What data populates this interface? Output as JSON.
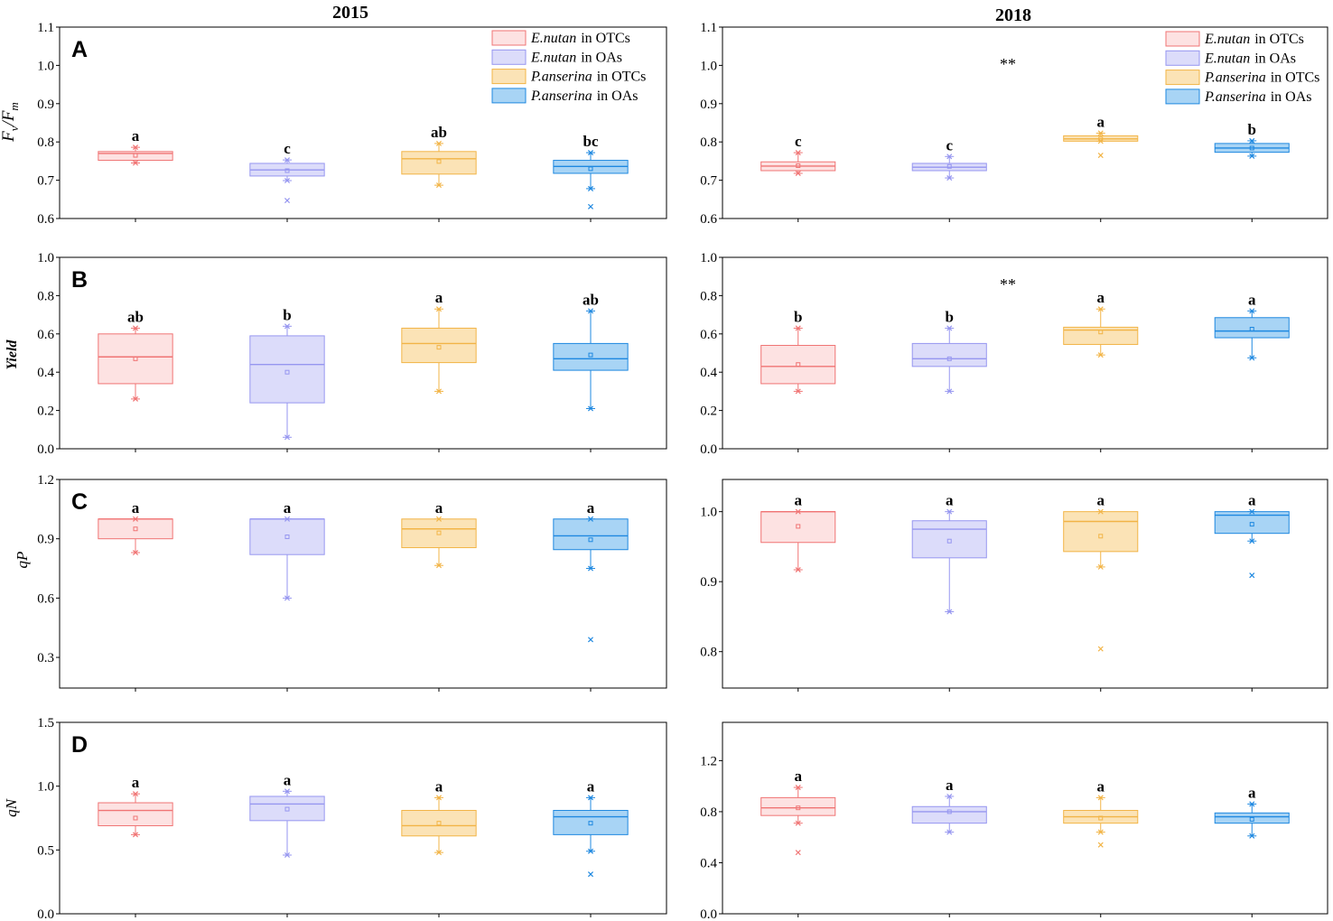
{
  "figure": {
    "columns": [
      {
        "title": "2015"
      },
      {
        "title": "2018"
      }
    ]
  },
  "legend": [
    {
      "species": "E.nutan",
      "site": "in OTCs",
      "fill": "#fde2e2",
      "stroke": "#f07474"
    },
    {
      "species": "E.nutan",
      "site": "in OAs",
      "fill": "#dcdcfa",
      "stroke": "#9696f0"
    },
    {
      "species": "P.anserina",
      "site": "in OTCs",
      "fill": "#fbe3b6",
      "stroke": "#f2b446"
    },
    {
      "species": "P.anserina",
      "site": "in OAs",
      "fill": "#a8d4f5",
      "stroke": "#1e88e0"
    }
  ],
  "chart_data": [
    {
      "type": "box",
      "panel_label": "A",
      "ylabel": [
        {
          "text": "F"
        },
        {
          "text": "v",
          "sub": true
        },
        {
          "text": "/"
        },
        {
          "text": "F"
        },
        {
          "text": "m",
          "sub": true
        }
      ],
      "ylim": [
        0.6,
        1.1
      ],
      "yticks": [
        "0.6",
        "0.7",
        "0.8",
        "0.9",
        "1.0",
        "1.1"
      ],
      "series": [
        {
          "min": 0.745,
          "q1": 0.752,
          "median": 0.77,
          "q3": 0.775,
          "max": 0.786,
          "mean": 0.765,
          "outliers": [],
          "letter": "a"
        },
        {
          "min": 0.699,
          "q1": 0.711,
          "median": 0.727,
          "q3": 0.744,
          "max": 0.753,
          "mean": 0.725,
          "outliers": [
            0.647
          ],
          "letter": "c"
        },
        {
          "min": 0.687,
          "q1": 0.716,
          "median": 0.756,
          "q3": 0.775,
          "max": 0.796,
          "mean": 0.749,
          "outliers": [],
          "letter": "ab"
        },
        {
          "min": 0.678,
          "q1": 0.718,
          "median": 0.736,
          "q3": 0.752,
          "max": 0.772,
          "mean": 0.73,
          "outliers": [
            0.631
          ],
          "letter": "bc"
        }
      ]
    },
    {
      "type": "box",
      "annotation": "**",
      "ylim": [
        0.6,
        1.1
      ],
      "yticks": [
        "0.6",
        "0.7",
        "0.8",
        "0.9",
        "1.0",
        "1.1"
      ],
      "series": [
        {
          "min": 0.718,
          "q1": 0.725,
          "median": 0.737,
          "q3": 0.748,
          "max": 0.772,
          "mean": 0.738,
          "outliers": [],
          "letter": "c"
        },
        {
          "min": 0.706,
          "q1": 0.725,
          "median": 0.734,
          "q3": 0.744,
          "max": 0.762,
          "mean": 0.736,
          "outliers": [],
          "letter": "c"
        },
        {
          "min": 0.802,
          "q1": 0.802,
          "median": 0.808,
          "q3": 0.816,
          "max": 0.823,
          "mean": 0.808,
          "outliers": [
            0.765
          ],
          "letter": "a"
        },
        {
          "min": 0.763,
          "q1": 0.773,
          "median": 0.784,
          "q3": 0.796,
          "max": 0.803,
          "mean": 0.784,
          "outliers": [],
          "letter": "b"
        }
      ]
    },
    {
      "type": "box",
      "panel_label": "B",
      "ylabel": [
        {
          "text": "Yield"
        }
      ],
      "ylim": [
        0.0,
        1.0
      ],
      "yticks": [
        "0.0",
        "0.2",
        "0.4",
        "0.6",
        "0.8",
        "1.0"
      ],
      "series": [
        {
          "min": 0.26,
          "q1": 0.34,
          "median": 0.48,
          "q3": 0.6,
          "max": 0.63,
          "mean": 0.47,
          "outliers": [],
          "letter": "ab"
        },
        {
          "min": 0.06,
          "q1": 0.24,
          "median": 0.44,
          "q3": 0.59,
          "max": 0.64,
          "mean": 0.4,
          "outliers": [],
          "letter": "b"
        },
        {
          "min": 0.3,
          "q1": 0.45,
          "median": 0.55,
          "q3": 0.63,
          "max": 0.73,
          "mean": 0.53,
          "outliers": [],
          "letter": "a"
        },
        {
          "min": 0.21,
          "q1": 0.41,
          "median": 0.47,
          "q3": 0.55,
          "max": 0.72,
          "mean": 0.49,
          "outliers": [],
          "letter": "ab"
        }
      ]
    },
    {
      "type": "box",
      "annotation": "**",
      "ylim": [
        0.0,
        1.0
      ],
      "yticks": [
        "0.0",
        "0.2",
        "0.4",
        "0.6",
        "0.8",
        "1.0"
      ],
      "series": [
        {
          "min": 0.3,
          "q1": 0.34,
          "median": 0.43,
          "q3": 0.54,
          "max": 0.63,
          "mean": 0.44,
          "outliers": [],
          "letter": "b"
        },
        {
          "min": 0.3,
          "q1": 0.43,
          "median": 0.47,
          "q3": 0.55,
          "max": 0.63,
          "mean": 0.47,
          "outliers": [],
          "letter": "b"
        },
        {
          "min": 0.49,
          "q1": 0.545,
          "median": 0.62,
          "q3": 0.635,
          "max": 0.73,
          "mean": 0.61,
          "outliers": [],
          "letter": "a"
        },
        {
          "min": 0.475,
          "q1": 0.58,
          "median": 0.615,
          "q3": 0.685,
          "max": 0.72,
          "mean": 0.625,
          "outliers": [],
          "letter": "a"
        }
      ]
    },
    {
      "type": "box",
      "panel_label": "C",
      "ylabel": [
        {
          "text": "qP"
        }
      ],
      "ylim": [
        0.145,
        1.2
      ],
      "yticks": [
        "0.3",
        "0.6",
        "0.9",
        "1.2"
      ],
      "series": [
        {
          "min": 0.83,
          "q1": 0.9,
          "median": 1.0,
          "q3": 1.0,
          "max": 1.0,
          "mean": 0.95,
          "outliers": [],
          "letter": "a"
        },
        {
          "min": 0.6,
          "q1": 0.82,
          "median": 1.0,
          "q3": 1.0,
          "max": 1.0,
          "mean": 0.91,
          "outliers": [],
          "letter": "a"
        },
        {
          "min": 0.765,
          "q1": 0.855,
          "median": 0.95,
          "q3": 1.0,
          "max": 1.0,
          "mean": 0.93,
          "outliers": [],
          "letter": "a"
        },
        {
          "min": 0.75,
          "q1": 0.845,
          "median": 0.915,
          "q3": 1.0,
          "max": 1.0,
          "mean": 0.895,
          "outliers": [
            0.39
          ],
          "letter": "a"
        }
      ]
    },
    {
      "type": "box",
      "ylim": [
        0.748,
        1.046
      ],
      "yticks": [
        "0.8",
        "0.9",
        "1.0"
      ],
      "series": [
        {
          "min": 0.917,
          "q1": 0.956,
          "median": 1.0,
          "q3": 1.0,
          "max": 1.0,
          "mean": 0.979,
          "outliers": [],
          "letter": "a"
        },
        {
          "min": 0.857,
          "q1": 0.934,
          "median": 0.975,
          "q3": 0.987,
          "max": 1.0,
          "mean": 0.958,
          "outliers": [],
          "letter": "a"
        },
        {
          "min": 0.921,
          "q1": 0.943,
          "median": 0.986,
          "q3": 1.0,
          "max": 1.0,
          "mean": 0.965,
          "outliers": [
            0.804
          ],
          "letter": "a"
        },
        {
          "min": 0.958,
          "q1": 0.969,
          "median": 0.995,
          "q3": 1.0,
          "max": 1.0,
          "mean": 0.982,
          "outliers": [
            0.909
          ],
          "letter": "a"
        }
      ]
    },
    {
      "type": "box",
      "panel_label": "D",
      "ylabel": [
        {
          "text": "qN"
        }
      ],
      "ylim": [
        0.0,
        1.5
      ],
      "yticks": [
        "0.0",
        "0.5",
        "1.0",
        "1.5"
      ],
      "series": [
        {
          "min": 0.62,
          "q1": 0.69,
          "median": 0.81,
          "q3": 0.87,
          "max": 0.94,
          "mean": 0.75,
          "outliers": [],
          "letter": "a"
        },
        {
          "min": 0.46,
          "q1": 0.73,
          "median": 0.86,
          "q3": 0.92,
          "max": 0.96,
          "mean": 0.82,
          "outliers": [],
          "letter": "a"
        },
        {
          "min": 0.48,
          "q1": 0.61,
          "median": 0.69,
          "q3": 0.81,
          "max": 0.91,
          "mean": 0.71,
          "outliers": [],
          "letter": "a"
        },
        {
          "min": 0.49,
          "q1": 0.62,
          "median": 0.76,
          "q3": 0.81,
          "max": 0.91,
          "mean": 0.71,
          "outliers": [
            0.31
          ],
          "letter": "a"
        }
      ]
    },
    {
      "type": "box",
      "ylim": [
        0.0,
        1.5
      ],
      "yticks": [
        "0.0",
        "0.4",
        "0.8",
        "1.2"
      ],
      "series": [
        {
          "min": 0.71,
          "q1": 0.77,
          "median": 0.83,
          "q3": 0.91,
          "max": 0.99,
          "mean": 0.83,
          "outliers": [
            0.48
          ],
          "letter": "a"
        },
        {
          "min": 0.64,
          "q1": 0.71,
          "median": 0.8,
          "q3": 0.84,
          "max": 0.92,
          "mean": 0.8,
          "outliers": [],
          "letter": "a"
        },
        {
          "min": 0.64,
          "q1": 0.71,
          "median": 0.76,
          "q3": 0.81,
          "max": 0.91,
          "mean": 0.75,
          "outliers": [
            0.54
          ],
          "letter": "a"
        },
        {
          "min": 0.61,
          "q1": 0.71,
          "median": 0.76,
          "q3": 0.79,
          "max": 0.86,
          "mean": 0.74,
          "outliers": [],
          "letter": "a"
        }
      ]
    }
  ]
}
